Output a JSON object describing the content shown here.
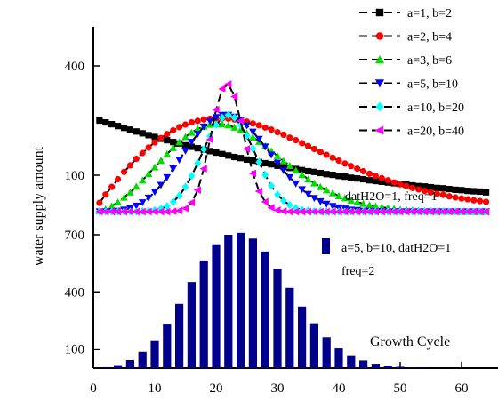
{
  "ylabel": "water supply amount",
  "x_ticks": [
    0,
    10,
    20,
    30,
    40,
    50,
    60
  ],
  "y_ticks": [
    100,
    400,
    700
  ],
  "top_note": "datH2O=1,  freq=1",
  "bottom_note": "Growth Cycle",
  "chart_data": [
    {
      "type": "line",
      "title": "",
      "xlim": [
        0,
        65
      ],
      "ylim": [
        0,
        900
      ],
      "x": [
        1,
        2,
        3,
        4,
        5,
        6,
        7,
        8,
        9,
        10,
        11,
        12,
        13,
        14,
        15,
        16,
        17,
        18,
        19,
        20,
        21,
        22,
        23,
        24,
        25,
        26,
        27,
        28,
        29,
        30,
        31,
        32,
        33,
        34,
        35,
        36,
        37,
        38,
        39,
        40,
        41,
        42,
        43,
        44,
        45,
        46,
        47,
        48,
        49,
        50,
        51,
        52,
        53,
        54,
        55,
        56,
        57,
        58,
        59,
        60,
        61,
        62,
        63,
        64
      ],
      "legend": "top-right",
      "series": [
        {
          "name": "a=1,   b=2",
          "color": "#000000",
          "marker": "square",
          "values": [
            250,
            245,
            240,
            235,
            230,
            225,
            220,
            215,
            210,
            205,
            200,
            196,
            191,
            187,
            182,
            178,
            174,
            170,
            166,
            162,
            158,
            154,
            150,
            147,
            143,
            140,
            136,
            133,
            130,
            126,
            123,
            120,
            117,
            114,
            111,
            109,
            106,
            103,
            101,
            98,
            96,
            93,
            91,
            89,
            86,
            84,
            82,
            80,
            78,
            76,
            74,
            72,
            70,
            69,
            67,
            65,
            64,
            62,
            60,
            59,
            57,
            56,
            55,
            53
          ]
        },
        {
          "name": "a=2,   b=4",
          "color": "#ff0000",
          "marker": "circle",
          "values": [
            24,
            47,
            68,
            89,
            109,
            127,
            145,
            161,
            176,
            190,
            202,
            213,
            223,
            232,
            239,
            245,
            249,
            253,
            255,
            256,
            256,
            255,
            253,
            250,
            247,
            242,
            237,
            231,
            225,
            218,
            211,
            203,
            196,
            188,
            180,
            172,
            164,
            156,
            148,
            140,
            132,
            125,
            118,
            111,
            104,
            98,
            92,
            86,
            80,
            75,
            70,
            65,
            61,
            57,
            53,
            49,
            46,
            42,
            39,
            36,
            34,
            31,
            29,
            27
          ]
        },
        {
          "name": "a=3,   b=6",
          "color": "#00dd00",
          "marker": "triangle-up",
          "values": [
            2,
            7,
            15,
            26,
            39,
            53,
            69,
            86,
            104,
            122,
            140,
            158,
            175,
            191,
            205,
            217,
            227,
            234,
            239,
            241,
            240,
            237,
            231,
            224,
            215,
            204,
            192,
            180,
            166,
            153,
            139,
            126,
            113,
            101,
            89,
            78,
            68,
            59,
            51,
            43,
            37,
            31,
            26,
            22,
            18,
            15,
            12,
            10,
            8,
            6,
            5,
            4,
            3,
            2,
            2,
            1,
            1,
            1,
            1,
            0,
            0,
            0,
            0,
            0
          ]
        },
        {
          "name": "a=5,   b=10",
          "color": "#0000ff",
          "marker": "triangle-down",
          "values": [
            0,
            0,
            1,
            2,
            5,
            9,
            16,
            25,
            38,
            54,
            73,
            94,
            118,
            142,
            167,
            191,
            213,
            233,
            248,
            259,
            265,
            265,
            260,
            250,
            236,
            219,
            199,
            178,
            156,
            134,
            113,
            94,
            77,
            61,
            48,
            37,
            28,
            21,
            15,
            11,
            8,
            5,
            4,
            2,
            2,
            1,
            1,
            0,
            0,
            0,
            0,
            0,
            0,
            0,
            0,
            0,
            0,
            0,
            0,
            0,
            0,
            0,
            0,
            0
          ]
        },
        {
          "name": "a=10, b=20",
          "color": "#00ffff",
          "marker": "diamond",
          "values": [
            0,
            0,
            0,
            0,
            0,
            0,
            0,
            1,
            2,
            4,
            8,
            15,
            27,
            44,
            68,
            98,
            133,
            171,
            207,
            238,
            258,
            265,
            258,
            238,
            208,
            173,
            136,
            101,
            71,
            47,
            30,
            18,
            10,
            5,
            3,
            1,
            1,
            0,
            0,
            0,
            0,
            0,
            0,
            0,
            0,
            0,
            0,
            0,
            0,
            0,
            0,
            0,
            0,
            0,
            0,
            0,
            0,
            0,
            0,
            0,
            0,
            0,
            0,
            0
          ]
        },
        {
          "name": "a=20, b=40",
          "color": "#ff00ff",
          "marker": "triangle-left",
          "values": [
            0,
            0,
            0,
            0,
            0,
            0,
            0,
            0,
            0,
            0,
            0,
            0,
            1,
            3,
            9,
            25,
            59,
            118,
            198,
            280,
            337,
            350,
            316,
            249,
            172,
            105,
            56,
            27,
            11,
            4,
            1,
            0,
            0,
            0,
            0,
            0,
            0,
            0,
            0,
            0,
            0,
            0,
            0,
            0,
            0,
            0,
            0,
            0,
            0,
            0,
            0,
            0,
            0,
            0,
            0,
            0,
            0,
            0,
            0,
            0,
            0,
            0,
            0,
            0
          ]
        }
      ]
    },
    {
      "type": "bar",
      "title": "",
      "xlabel": "",
      "xlim": [
        0,
        65
      ],
      "ylim": [
        0,
        900
      ],
      "legend": "top-right",
      "series": [
        {
          "name": "a=5, b=10, datH2O=1",
          "legend_extra": "freq=2",
          "color": "#00008b",
          "x": [
            2,
            4,
            6,
            8,
            10,
            12,
            14,
            16,
            18,
            20,
            22,
            24,
            26,
            28,
            30,
            32,
            34,
            36,
            38,
            40,
            42,
            44,
            46,
            48,
            50,
            52,
            54,
            56,
            58,
            60,
            62,
            64
          ],
          "values": [
            5,
            16,
            42,
            85,
            146,
            233,
            337,
            452,
            565,
            650,
            700,
            710,
            680,
            612,
            521,
            421,
            323,
            235,
            162,
            107,
            67,
            40,
            23,
            13,
            7,
            4,
            2,
            1,
            0,
            0,
            0,
            0
          ]
        }
      ]
    }
  ]
}
